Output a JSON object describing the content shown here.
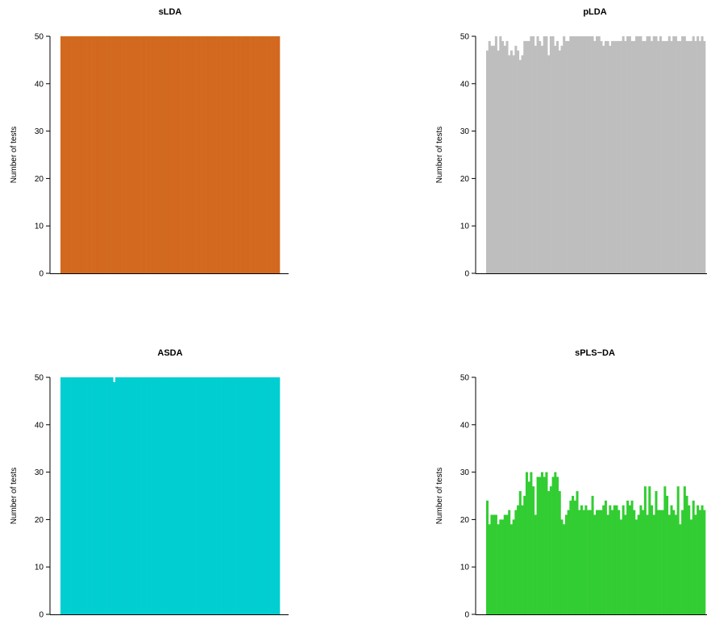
{
  "chart_data": [
    {
      "type": "bar",
      "title": "sLDA",
      "xlabel": "",
      "ylabel": "Number of tests",
      "ylim": [
        0,
        50
      ],
      "yticks": [
        0,
        10,
        20,
        30,
        40,
        50
      ],
      "color": "#d2691e",
      "values": [
        50,
        50,
        50,
        50,
        50,
        50,
        50,
        50,
        50,
        50,
        50,
        50,
        50,
        50,
        50,
        50,
        50,
        50,
        50,
        50,
        50,
        50,
        50,
        50,
        50,
        50,
        50,
        50,
        50,
        50,
        50,
        50,
        50,
        50,
        50,
        50,
        50,
        50,
        50,
        50,
        50,
        50,
        50,
        50,
        50,
        50,
        50,
        50,
        50,
        50,
        50,
        50,
        50,
        50,
        50,
        50,
        50,
        50,
        50,
        50,
        50,
        50,
        50,
        50,
        50,
        50,
        50,
        50,
        50,
        50,
        50,
        50,
        50,
        50,
        50,
        50,
        50,
        50,
        50,
        50,
        50,
        50,
        50,
        50,
        50,
        50,
        50,
        50,
        50,
        50,
        50,
        50,
        50,
        50,
        50,
        50,
        50,
        50,
        50,
        50
      ]
    },
    {
      "type": "bar",
      "title": "pLDA",
      "xlabel": "",
      "ylabel": "Number of tests",
      "ylim": [
        0,
        50
      ],
      "yticks": [
        0,
        10,
        20,
        30,
        40,
        50
      ],
      "color": "#bebebe",
      "values": [
        47,
        49,
        48,
        48,
        50,
        47,
        50,
        49,
        48,
        49,
        46,
        47,
        46,
        48,
        47,
        45,
        46,
        49,
        49,
        49,
        50,
        50,
        48,
        50,
        49,
        48,
        50,
        50,
        46,
        50,
        50,
        48,
        49,
        47,
        48,
        50,
        49,
        49,
        50,
        50,
        50,
        50,
        50,
        50,
        50,
        50,
        50,
        50,
        50,
        49,
        50,
        50,
        49,
        48,
        49,
        49,
        48,
        49,
        49,
        49,
        49,
        49,
        50,
        49,
        50,
        50,
        49,
        49,
        50,
        50,
        50,
        49,
        49,
        50,
        50,
        49,
        50,
        50,
        49,
        50,
        49,
        49,
        49,
        50,
        49,
        50,
        50,
        49,
        49,
        50,
        50,
        49,
        49,
        49,
        50,
        49,
        50,
        49,
        50,
        49
      ]
    },
    {
      "type": "bar",
      "title": "ASDA",
      "xlabel": "",
      "ylabel": "Number of tests",
      "ylim": [
        0,
        50
      ],
      "yticks": [
        0,
        10,
        20,
        30,
        40,
        50
      ],
      "color": "#00ced1",
      "values": [
        50,
        50,
        50,
        50,
        50,
        50,
        50,
        50,
        50,
        50,
        50,
        50,
        50,
        50,
        50,
        50,
        50,
        50,
        50,
        50,
        50,
        50,
        50,
        50,
        49,
        50,
        50,
        50,
        50,
        50,
        50,
        50,
        50,
        50,
        50,
        50,
        50,
        50,
        50,
        50,
        50,
        50,
        50,
        50,
        50,
        50,
        50,
        50,
        50,
        50,
        50,
        50,
        50,
        50,
        50,
        50,
        50,
        50,
        50,
        50,
        50,
        50,
        50,
        50,
        50,
        50,
        50,
        50,
        50,
        50,
        50,
        50,
        50,
        50,
        50,
        50,
        50,
        50,
        50,
        50,
        50,
        50,
        50,
        50,
        50,
        50,
        50,
        50,
        50,
        50,
        50,
        50,
        50,
        50,
        50,
        50,
        50,
        50,
        50,
        50
      ]
    },
    {
      "type": "bar",
      "title": "sPLS−DA",
      "xlabel": "",
      "ylabel": "Number of tests",
      "ylim": [
        0,
        50
      ],
      "yticks": [
        0,
        10,
        20,
        30,
        40,
        50
      ],
      "color": "#32cd32",
      "values": [
        24,
        19,
        21,
        21,
        21,
        19,
        20,
        20,
        21,
        21,
        22,
        19,
        20,
        22,
        23,
        26,
        23,
        25,
        30,
        28,
        30,
        27,
        21,
        29,
        29,
        30,
        29,
        30,
        26,
        27,
        29,
        30,
        29,
        26,
        20,
        19,
        21,
        22,
        24,
        25,
        24,
        26,
        22,
        23,
        22,
        23,
        22,
        22,
        25,
        21,
        22,
        22,
        22,
        23,
        24,
        21,
        23,
        22,
        23,
        23,
        22,
        20,
        23,
        21,
        24,
        23,
        24,
        22,
        20,
        21,
        23,
        22,
        27,
        21,
        27,
        23,
        21,
        26,
        22,
        22,
        22,
        27,
        25,
        21,
        23,
        22,
        21,
        27,
        19,
        22,
        27,
        25,
        23,
        20,
        24,
        21,
        23,
        22,
        23,
        22
      ]
    }
  ]
}
